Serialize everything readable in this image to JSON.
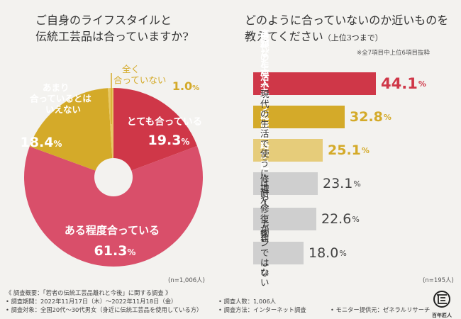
{
  "left_title": [
    "ご自身のライフスタイルと",
    "伝統工芸品は合っていますか?"
  ],
  "right_title_line1": "どのように合っていないのか近いものを",
  "right_title_line2": "教えてください",
  "right_title_suffix": "（上位3つまで）",
  "right_note": "※全7項目中上位6項目抜粋",
  "chart_data": [
    {
      "type": "pie",
      "title": "ご自身のライフスタイルと伝統工芸品は合っていますか?",
      "slices": [
        {
          "label": "とても合っている",
          "value": 19.3,
          "color": "#cf3748",
          "label_color": "#ffffff"
        },
        {
          "label": "ある程度合っている",
          "value": 61.3,
          "color": "#d94f6a",
          "label_color": "#ffffff"
        },
        {
          "label": "あまり合っているとはいえない",
          "value": 18.4,
          "color": "#d4aa29",
          "label_color": "#ffffff"
        },
        {
          "label": "全く合っていない",
          "value": 1.0,
          "color": "#e8c864",
          "label_color": "#d4aa29"
        }
      ],
      "unit": "%",
      "n_label": "(n=1,006人)"
    },
    {
      "type": "bar",
      "orientation": "horizontal",
      "title": "どのように合っていないのか近いものを教えてください（上位3つまで）",
      "categories": [
        "高額なため入手しにくい",
        "現代の生活で使うには実用性に欠ける",
        "販売経路が乏しい",
        "現代の生活で使うには耐久性が物足りない",
        "修理や修復が難しい",
        "モダンではない"
      ],
      "values": [
        44.1,
        32.8,
        25.1,
        23.1,
        22.6,
        18.0
      ],
      "value_labels": [
        "44.1",
        "32.8",
        "25.1",
        "23.1",
        "22.6",
        "18.0"
      ],
      "display_labels": [
        "高額なため入手しにくい",
        "現代の生活で使うには\n実用性に欠ける",
        "販売経路が乏しい",
        "現代の生活で使うには\n耐久性が物足りない",
        "修理や修復が難しい",
        "モダンではない"
      ],
      "colors": [
        "#cf3748",
        "#d4aa29",
        "#e6cc7a",
        "#cfcfcf",
        "#cfcfcf",
        "#cfcfcf"
      ],
      "label_colors": [
        "#ffffff",
        "#ffffff",
        "#ffffff",
        "#333333",
        "#333333",
        "#333333"
      ],
      "unit": "%",
      "xlim": [
        0,
        50
      ],
      "n_label": "(n=195人)"
    }
  ],
  "footer": {
    "summary": "《 調査概要：「若者の伝統工芸品離れと今後」に関する調査 》",
    "period": "• 調査期間：2022年11月17日（木）～2022年11月18日（金）",
    "target": "• 調査対象：全国20代～30代男女（身近に伝統工芸品を使用している方）",
    "count": "• 調査人数：1,006人",
    "method": "• 調査方法：インターネット調査",
    "monitor": "• モニター提供元：ゼネラルリサーチ"
  },
  "logo_text": "百年匠人"
}
